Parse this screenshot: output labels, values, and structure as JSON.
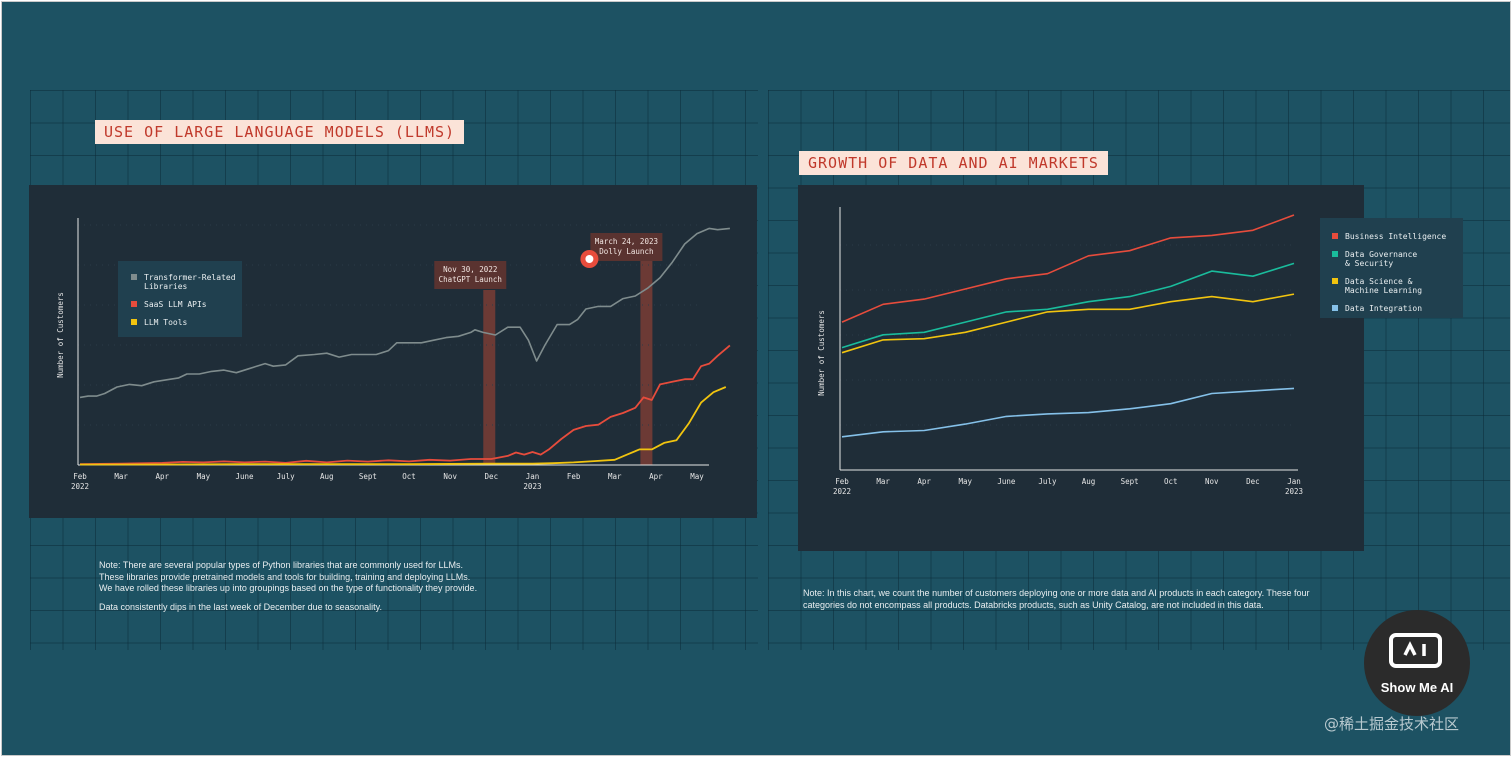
{
  "chart_data": [
    {
      "type": "line",
      "title": "USE OF LARGE LANGUAGE MODELS (LLMS)",
      "ylabel": "Number of Customers",
      "ylim": [
        0,
        100
      ],
      "x_ticks": [
        {
          "label": "Feb",
          "sub": "2022"
        },
        {
          "label": "Mar",
          "sub": ""
        },
        {
          "label": "Apr",
          "sub": ""
        },
        {
          "label": "May",
          "sub": ""
        },
        {
          "label": "June",
          "sub": ""
        },
        {
          "label": "July",
          "sub": ""
        },
        {
          "label": "Aug",
          "sub": ""
        },
        {
          "label": "Sept",
          "sub": ""
        },
        {
          "label": "Oct",
          "sub": ""
        },
        {
          "label": "Nov",
          "sub": ""
        },
        {
          "label": "Dec",
          "sub": ""
        },
        {
          "label": "Jan",
          "sub": "2023"
        },
        {
          "label": "Feb",
          "sub": ""
        },
        {
          "label": "Mar",
          "sub": ""
        },
        {
          "label": "Apr",
          "sub": ""
        },
        {
          "label": "May",
          "sub": ""
        }
      ],
      "series": [
        {
          "name": "Transformer-Related\nLibraries",
          "color": "#7f8c8d",
          "points": [
            [
              0,
              26
            ],
            [
              0.2,
              26.5
            ],
            [
              0.4,
              26.5
            ],
            [
              0.6,
              27.5
            ],
            [
              0.9,
              30
            ],
            [
              1.2,
              31
            ],
            [
              1.5,
              30.5
            ],
            [
              1.8,
              32
            ],
            [
              2.2,
              33
            ],
            [
              2.4,
              33.5
            ],
            [
              2.6,
              35
            ],
            [
              2.9,
              35
            ],
            [
              3.2,
              36
            ],
            [
              3.5,
              36.5
            ],
            [
              3.8,
              35.5
            ],
            [
              4.1,
              37
            ],
            [
              4.5,
              39
            ],
            [
              4.7,
              38
            ],
            [
              5,
              38.5
            ],
            [
              5.3,
              42
            ],
            [
              5.7,
              42.5
            ],
            [
              6,
              43
            ],
            [
              6.3,
              41.5
            ],
            [
              6.6,
              42.5
            ],
            [
              6.9,
              42.5
            ],
            [
              7.2,
              42.5
            ],
            [
              7.5,
              44
            ],
            [
              7.7,
              47
            ],
            [
              8,
              47
            ],
            [
              8.3,
              47
            ],
            [
              8.6,
              48
            ],
            [
              8.9,
              49
            ],
            [
              9.2,
              49.5
            ],
            [
              9.5,
              51
            ],
            [
              9.6,
              52
            ],
            [
              9.8,
              51
            ],
            [
              10.1,
              50
            ],
            [
              10.4,
              53
            ],
            [
              10.7,
              53
            ],
            [
              10.9,
              48
            ],
            [
              11,
              44
            ],
            [
              11.1,
              40
            ],
            [
              11.3,
              46
            ],
            [
              11.6,
              54
            ],
            [
              11.9,
              54
            ],
            [
              12.1,
              56
            ],
            [
              12.3,
              60
            ],
            [
              12.6,
              61
            ],
            [
              12.9,
              61
            ],
            [
              13.2,
              64
            ],
            [
              13.5,
              65
            ],
            [
              13.8,
              68
            ],
            [
              14.1,
              72
            ],
            [
              14.4,
              78
            ],
            [
              14.7,
              85
            ],
            [
              15,
              89
            ],
            [
              15.3,
              91
            ],
            [
              15.5,
              90.5
            ],
            [
              15.8,
              91
            ]
          ]
        },
        {
          "name": "SaaS LLM APIs",
          "color": "#e74c3c",
          "points": [
            [
              0,
              0.3
            ],
            [
              1,
              0.5
            ],
            [
              2,
              0.8
            ],
            [
              2.5,
              1.2
            ],
            [
              3,
              1
            ],
            [
              3.5,
              1.4
            ],
            [
              4,
              1
            ],
            [
              4.5,
              1.3
            ],
            [
              5,
              0.8
            ],
            [
              5.5,
              1.6
            ],
            [
              6,
              1
            ],
            [
              6.5,
              1.7
            ],
            [
              7,
              1.3
            ],
            [
              7.5,
              1.8
            ],
            [
              8,
              1.4
            ],
            [
              8.5,
              2
            ],
            [
              9,
              1.7
            ],
            [
              9.5,
              2.3
            ],
            [
              10,
              2.3
            ],
            [
              10.4,
              3.5
            ],
            [
              10.6,
              4.8
            ],
            [
              10.8,
              4
            ],
            [
              11,
              5
            ],
            [
              11.2,
              4
            ],
            [
              11.4,
              6
            ],
            [
              11.7,
              10
            ],
            [
              12,
              13.5
            ],
            [
              12.3,
              15
            ],
            [
              12.6,
              15.5
            ],
            [
              12.9,
              18.5
            ],
            [
              13.2,
              20
            ],
            [
              13.5,
              22
            ],
            [
              13.7,
              26
            ],
            [
              13.9,
              25
            ],
            [
              14.1,
              31
            ],
            [
              14.4,
              32
            ],
            [
              14.7,
              33
            ],
            [
              14.9,
              33
            ],
            [
              15.1,
              38
            ],
            [
              15.3,
              39
            ],
            [
              15.5,
              42
            ],
            [
              15.8,
              46
            ]
          ]
        },
        {
          "name": "LLM Tools",
          "color": "#f1c40f",
          "points": [
            [
              0,
              0.2
            ],
            [
              2,
              0.2
            ],
            [
              4,
              0.3
            ],
            [
              6,
              0.3
            ],
            [
              8,
              0.3
            ],
            [
              10,
              0.5
            ],
            [
              11,
              0.5
            ],
            [
              11.5,
              0.7
            ],
            [
              12,
              1
            ],
            [
              12.5,
              1.5
            ],
            [
              13,
              2
            ],
            [
              13.3,
              4
            ],
            [
              13.6,
              6
            ],
            [
              13.9,
              6
            ],
            [
              14.2,
              8.5
            ],
            [
              14.5,
              9.5
            ],
            [
              14.8,
              16
            ],
            [
              15.1,
              24
            ],
            [
              15.4,
              28
            ],
            [
              15.7,
              30
            ]
          ]
        }
      ],
      "annotations": [
        {
          "text": "Nov 30, 2022\nChatGPT Launch",
          "x": 9.95
        },
        {
          "text": "March 24, 2023\nDolly Launch",
          "x": 13.77
        }
      ],
      "legend_position": "top-left",
      "note": [
        "Note: There are several popular types of Python libraries that are commonly used for LLMs.\nThese libraries provide pretrained models and tools for building, training and deploying LLMs.\nWe have rolled these libraries up into groupings based on the type of functionality they provide.",
        "Data consistently dips in the last week of December due to seasonality."
      ]
    },
    {
      "type": "line",
      "title": "GROWTH OF DATA AND AI MARKETS",
      "ylabel": "Number of Customers",
      "ylim": [
        0,
        100
      ],
      "x_ticks": [
        {
          "label": "Feb",
          "sub": "2022"
        },
        {
          "label": "Mar",
          "sub": ""
        },
        {
          "label": "Apr",
          "sub": ""
        },
        {
          "label": "May",
          "sub": ""
        },
        {
          "label": "June",
          "sub": ""
        },
        {
          "label": "July",
          "sub": ""
        },
        {
          "label": "Aug",
          "sub": ""
        },
        {
          "label": "Sept",
          "sub": ""
        },
        {
          "label": "Oct",
          "sub": ""
        },
        {
          "label": "Nov",
          "sub": ""
        },
        {
          "label": "Dec",
          "sub": ""
        },
        {
          "label": "Jan",
          "sub": "2023"
        }
      ],
      "series": [
        {
          "name": "Business Intelligence",
          "color": "#e74c3c",
          "values": [
            58,
            65,
            67,
            71,
            75,
            77,
            84,
            86,
            91,
            92,
            94,
            100
          ]
        },
        {
          "name": "Data Governance\n& Security",
          "color": "#1abc9c",
          "values": [
            48,
            53,
            54,
            58,
            62,
            63,
            66,
            68,
            72,
            78,
            76,
            81
          ]
        },
        {
          "name": "Data Science &\nMachine Learning",
          "color": "#f1c40f",
          "values": [
            46,
            51,
            51.5,
            54,
            58,
            62,
            63,
            63,
            66,
            68,
            66,
            69
          ]
        },
        {
          "name": "Data Integration",
          "color": "#85c1e9",
          "values": [
            13,
            15,
            15.5,
            18,
            21,
            22,
            22.5,
            24,
            26,
            30,
            31,
            32
          ]
        }
      ],
      "legend_position": "top-right",
      "note": [
        "Note: In this chart, we count the number of customers deploying one or more data and AI products in each category. These four\ncategories do not encompass all products. Databricks products, such as Unity Catalog, are not included in this data."
      ]
    }
  ],
  "badge": {
    "text": "Show Me AI"
  },
  "watermark": "@稀土掘金技术社区",
  "colors": {
    "background": "#1d5263",
    "panel": "#1f2d38",
    "legend": "#20404f",
    "title_bg": "#fbe3d8",
    "title_fg": "#c0392b"
  }
}
